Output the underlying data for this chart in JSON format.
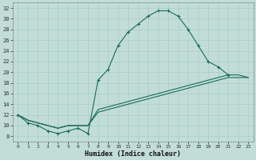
{
  "xlabel": "Humidex (Indice chaleur)",
  "bg_color": "#c2ddd8",
  "line_color": "#1a6b5a",
  "grid_color": "#a8ccc8",
  "xlim": [
    -0.5,
    23.5
  ],
  "ylim": [
    7,
    33
  ],
  "xticks": [
    0,
    1,
    2,
    3,
    4,
    5,
    6,
    7,
    8,
    9,
    10,
    11,
    12,
    13,
    14,
    15,
    16,
    17,
    18,
    19,
    20,
    21,
    22,
    23
  ],
  "yticks": [
    8,
    10,
    12,
    14,
    16,
    18,
    20,
    22,
    24,
    26,
    28,
    30,
    32
  ],
  "series": [
    {
      "x": [
        0,
        1,
        2,
        3,
        4,
        5,
        6,
        7,
        8,
        9,
        10,
        11,
        12,
        13,
        14,
        15,
        16,
        17,
        18,
        19,
        20,
        21,
        22,
        23
      ],
      "y": [
        12,
        10.5,
        10,
        9,
        8.5,
        9,
        9.5,
        8.5,
        18.5,
        20.5,
        25,
        27.5,
        29,
        30.5,
        31.5,
        31.5,
        30.5,
        28,
        25,
        22,
        21,
        19.5,
        null,
        null
      ],
      "marker": "+"
    },
    {
      "x": [
        0,
        1,
        2,
        3,
        4,
        5,
        6,
        7,
        8,
        9,
        10,
        11,
        12,
        13,
        14,
        15,
        16,
        17,
        18,
        19,
        20,
        21,
        22,
        23
      ],
      "y": [
        12,
        11,
        10.5,
        10,
        9.5,
        10,
        10,
        10,
        13,
        13.5,
        14,
        14.5,
        15,
        15.5,
        16,
        16.5,
        17,
        17.5,
        18,
        18.5,
        19,
        19.5,
        19.5,
        19
      ],
      "marker": null
    },
    {
      "x": [
        0,
        1,
        2,
        3,
        4,
        5,
        6,
        7,
        8,
        9,
        10,
        11,
        12,
        13,
        14,
        15,
        16,
        17,
        18,
        19,
        20,
        21,
        22,
        23
      ],
      "y": [
        12,
        11,
        10.5,
        10,
        9.5,
        10,
        10,
        10,
        12.5,
        13,
        13.5,
        14,
        14.5,
        15,
        15.5,
        16,
        16.5,
        17,
        17.5,
        18,
        18.5,
        19,
        19,
        19
      ],
      "marker": null
    }
  ]
}
